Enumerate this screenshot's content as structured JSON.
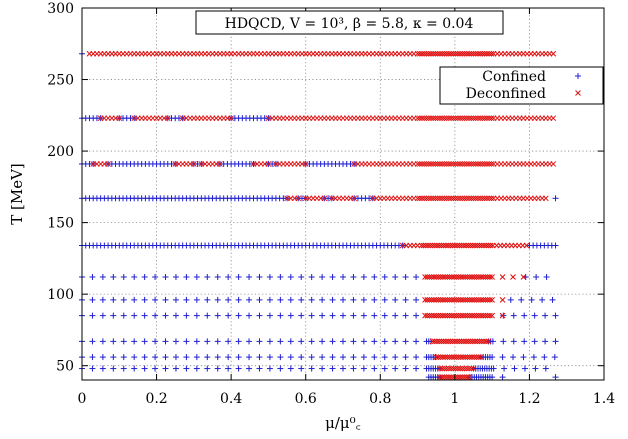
{
  "chart_data": {
    "type": "scatter",
    "title_box": "HDQCD, V = 10³, β = 5.8, κ = 0.04",
    "xlabel": "μ/μ⁰꜀",
    "ylabel": "T [MeV]",
    "xlim": [
      0,
      1.4
    ],
    "ylim": [
      40,
      300
    ],
    "x_ticks": [
      0,
      0.2,
      0.4,
      0.6,
      0.8,
      1,
      1.2,
      1.4
    ],
    "x_tick_labels": [
      "0",
      "0.2",
      "0.4",
      "0.6",
      "0.8",
      "1",
      "1.2",
      "1.4"
    ],
    "y_ticks": [
      50,
      100,
      150,
      200,
      250,
      300
    ],
    "y_tick_labels": [
      "50",
      "100",
      "150",
      "200",
      "250",
      "300"
    ],
    "grid": true,
    "legend_position": "top-right",
    "colors": {
      "confined": "#1f1fd0",
      "deconfined": "#e01010"
    },
    "series": [
      {
        "name": "Confined",
        "marker": "+",
        "rows": [
          {
            "T": 268,
            "ranges": [
              [
                0.0,
                0.0
              ]
            ]
          },
          {
            "T": 223,
            "ranges": [
              [
                0.0,
                0.05
              ],
              [
                0.1,
                0.14
              ],
              [
                0.23,
                0.27
              ],
              [
                0.4,
                0.5
              ]
            ]
          },
          {
            "T": 191,
            "ranges": [
              [
                0.0,
                0.03
              ],
              [
                0.07,
                0.25
              ],
              [
                0.3,
                0.32
              ],
              [
                0.37,
                0.46
              ],
              [
                0.5,
                0.52
              ],
              [
                0.6,
                0.73
              ]
            ]
          },
          {
            "T": 167,
            "ranges": [
              [
                0.0,
                0.55
              ],
              [
                0.58,
                0.6
              ],
              [
                0.65,
                0.67
              ],
              [
                0.73,
                0.78
              ],
              [
                1.27,
                1.27
              ]
            ]
          },
          {
            "T": 134,
            "ranges": [
              [
                0.0,
                0.86
              ],
              [
                1.2,
                1.27
              ]
            ]
          },
          {
            "T": 112,
            "ranges": [
              [
                0.0,
                0.92
              ],
              [
                1.19,
                1.27
              ]
            ]
          },
          {
            "T": 96,
            "ranges": [
              [
                0.0,
                0.92
              ],
              [
                1.15,
                1.27
              ]
            ]
          },
          {
            "T": 85,
            "ranges": [
              [
                0.0,
                0.92
              ],
              [
                1.13,
                1.27
              ]
            ]
          },
          {
            "T": 67,
            "ranges": [
              [
                0.0,
                0.94
              ],
              [
                1.09,
                1.27
              ]
            ]
          },
          {
            "T": 56,
            "ranges": [
              [
                0.0,
                0.95
              ],
              [
                1.07,
                1.27
              ]
            ]
          },
          {
            "T": 48,
            "ranges": [
              [
                0.0,
                0.96
              ],
              [
                1.05,
                1.27
              ]
            ]
          },
          {
            "T": 42,
            "ranges": [
              [
                0.93,
                0.96
              ],
              [
                1.04,
                1.14
              ],
              [
                1.27,
                1.27
              ]
            ]
          }
        ]
      },
      {
        "name": "Deconfined",
        "marker": "x",
        "rows": [
          {
            "T": 268,
            "ranges": [
              [
                0.02,
                1.27
              ]
            ]
          },
          {
            "T": 223,
            "ranges": [
              [
                0.05,
                0.1
              ],
              [
                0.14,
                0.23
              ],
              [
                0.27,
                0.4
              ],
              [
                0.5,
                1.27
              ]
            ]
          },
          {
            "T": 191,
            "ranges": [
              [
                0.03,
                0.07
              ],
              [
                0.25,
                0.3
              ],
              [
                0.32,
                0.37
              ],
              [
                0.46,
                0.5
              ],
              [
                0.52,
                0.6
              ],
              [
                0.73,
                1.27
              ]
            ]
          },
          {
            "T": 167,
            "ranges": [
              [
                0.55,
                0.58
              ],
              [
                0.6,
                0.65
              ],
              [
                0.67,
                0.73
              ],
              [
                0.78,
                1.25
              ]
            ]
          },
          {
            "T": 134,
            "ranges": [
              [
                0.86,
                1.2
              ]
            ]
          },
          {
            "T": 112,
            "ranges": [
              [
                0.92,
                1.19
              ]
            ]
          },
          {
            "T": 96,
            "ranges": [
              [
                0.92,
                1.15
              ]
            ]
          },
          {
            "T": 85,
            "ranges": [
              [
                0.92,
                1.13
              ]
            ]
          },
          {
            "T": 67,
            "ranges": [
              [
                0.94,
                1.09
              ]
            ]
          },
          {
            "T": 56,
            "ranges": [
              [
                0.95,
                1.07
              ]
            ]
          },
          {
            "T": 48,
            "ranges": [
              [
                0.96,
                1.05
              ]
            ]
          },
          {
            "T": 42,
            "ranges": [
              [
                0.96,
                1.04
              ]
            ]
          }
        ]
      }
    ]
  }
}
